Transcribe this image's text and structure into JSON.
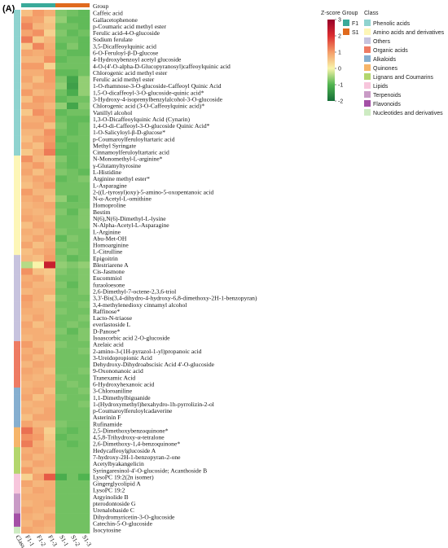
{
  "chart_data": {
    "type": "heatmap",
    "panel_label": "(A)",
    "columns": [
      "F1-1",
      "F1-2",
      "F1-3",
      "S1-1",
      "S1-2",
      "S1-3"
    ],
    "class_column_label": "Class",
    "group_label": "Group",
    "column_groups": [
      "F1",
      "F1",
      "F1",
      "S1",
      "S1",
      "S1"
    ],
    "zscore_legend": {
      "title": "Z-score",
      "ticks": [
        3,
        2,
        1,
        0,
        -1,
        -2
      ],
      "range": [
        -2,
        3
      ]
    },
    "group_legend": {
      "title": "Group",
      "items": [
        {
          "name": "F1",
          "color": "#3aaa9a"
        },
        {
          "name": "S1",
          "color": "#e06a1e"
        }
      ]
    },
    "class_legend": {
      "title": "Class",
      "items": [
        {
          "name": "Phenolic acids",
          "color": "#8fd3cf"
        },
        {
          "name": "Amino acids and derivatives",
          "color": "#fdf6b7"
        },
        {
          "name": "Others",
          "color": "#c7c3de"
        },
        {
          "name": "Organic acids",
          "color": "#ee7b63"
        },
        {
          "name": "Alkaloids",
          "color": "#86afd0"
        },
        {
          "name": "Quinones",
          "color": "#f6b56a"
        },
        {
          "name": "Lignans and Coumarins",
          "color": "#b3d66d"
        },
        {
          "name": "Lipids",
          "color": "#f7c6dc"
        },
        {
          "name": "Terpenoids",
          "color": "#c99bc6"
        },
        {
          "name": "Flavonoids",
          "color": "#a450a6"
        },
        {
          "name": "Nucleotides and derivatives",
          "color": "#cdebc2"
        }
      ]
    },
    "rows": [
      {
        "name": "Caffeic acid",
        "class": "Phenolic acids",
        "values": [
          0.6,
          1.0,
          0.8,
          -0.7,
          -0.8,
          -0.9
        ]
      },
      {
        "name": "Gallacetophenone",
        "class": "Phenolic acids",
        "values": [
          1.0,
          0.9,
          0.5,
          -0.6,
          -0.9,
          -0.9
        ]
      },
      {
        "name": "p-Coumaric acid methyl ester",
        "class": "Phenolic acids",
        "values": [
          1.2,
          0.7,
          0.6,
          -0.8,
          -0.8,
          -0.9
        ]
      },
      {
        "name": "Ferulic acid-4-O-glucoside",
        "class": "Phenolic acids",
        "values": [
          0.9,
          1.1,
          0.4,
          -0.7,
          -0.9,
          -0.8
        ]
      },
      {
        "name": "Sodium ferulate",
        "class": "Phenolic acids",
        "values": [
          1.3,
          0.5,
          0.7,
          -0.8,
          -0.8,
          -0.9
        ]
      },
      {
        "name": "3,5-Dicaffeoylquinic acid",
        "class": "Phenolic acids",
        "values": [
          0.5,
          1.2,
          0.8,
          -0.9,
          -0.7,
          -0.9
        ]
      },
      {
        "name": "6-O-Feruloyl-β-D-glucose",
        "class": "Phenolic acids",
        "values": [
          0.9,
          0.8,
          0.9,
          -0.8,
          -0.9,
          -0.9
        ]
      },
      {
        "name": "4-Hydroxybenzoyl acetyl glucoside",
        "class": "Phenolic acids",
        "values": [
          0.7,
          0.7,
          1.1,
          -0.9,
          -0.8,
          -0.8
        ]
      },
      {
        "name": "4-O-(4'-O-alpha-D-Glucopyranosyl)caffeoylquinic acid",
        "class": "Phenolic acids",
        "values": [
          1.0,
          1.0,
          0.4,
          -0.8,
          -0.8,
          -0.8
        ]
      },
      {
        "name": "Chlorogenic acid methyl ester",
        "class": "Phenolic acids",
        "values": [
          0.8,
          0.8,
          1.0,
          -0.9,
          -0.9,
          -0.8
        ]
      },
      {
        "name": "Ferulic acid methyl ester",
        "class": "Phenolic acids",
        "values": [
          0.9,
          0.6,
          1.0,
          -0.7,
          -1.2,
          -0.6
        ]
      },
      {
        "name": "1-O-rhamnose-3-O-glucoside-Caffeoyl Quinic Acid",
        "class": "Phenolic acids",
        "values": [
          0.7,
          0.9,
          0.9,
          -0.6,
          -1.3,
          -0.6
        ]
      },
      {
        "name": "1,5-O-dicaffeoyl-3-O-glucoside-quinic acid*",
        "class": "Phenolic acids",
        "values": [
          1.0,
          0.7,
          0.8,
          -0.8,
          -1.1,
          -0.6
        ]
      },
      {
        "name": "3-Hydroxy-4-isoprenylbenzylalcohol-3-O-glucoside",
        "class": "Phenolic acids",
        "values": [
          0.6,
          1.0,
          0.9,
          -0.9,
          -0.8,
          -0.8
        ]
      },
      {
        "name": "Chlorogenic acid (3-O-Caffeoylquinic acid)*",
        "class": "Phenolic acids",
        "values": [
          0.9,
          0.9,
          0.7,
          -0.6,
          -1.2,
          -0.7
        ]
      },
      {
        "name": "Vanillyl alcohol",
        "class": "Phenolic acids",
        "values": [
          0.5,
          1.1,
          0.9,
          -0.9,
          -0.8,
          -0.8
        ]
      },
      {
        "name": "1,3-O-Dicaffeoylquinic Acid (Cynarin)",
        "class": "Phenolic acids",
        "values": [
          0.8,
          0.8,
          1.0,
          -0.8,
          -0.9,
          -0.9
        ]
      },
      {
        "name": "1,4-O-di-Caffeoyl-3-O-glucoside Quinic Acid*",
        "class": "Phenolic acids",
        "values": [
          0.9,
          0.9,
          0.6,
          -0.7,
          -0.9,
          -0.8
        ]
      },
      {
        "name": "1-O-Salicyloyl-β-D-glucose*",
        "class": "Phenolic acids",
        "values": [
          0.7,
          0.7,
          1.1,
          -0.8,
          -0.9,
          -0.8
        ]
      },
      {
        "name": "p-Coumaroylferuloyltartaric acid",
        "class": "Phenolic acids",
        "values": [
          0.6,
          0.9,
          1.0,
          -0.9,
          -0.8,
          -0.8
        ]
      },
      {
        "name": "Methyl Syringate",
        "class": "Phenolic acids",
        "values": [
          0.8,
          0.6,
          1.1,
          -0.8,
          -0.9,
          -0.8
        ]
      },
      {
        "name": "Cinnamoylferuloyltartaric acid",
        "class": "Phenolic acids",
        "values": [
          0.5,
          0.8,
          1.3,
          -0.9,
          -0.9,
          -0.8
        ]
      },
      {
        "name": "N-Monomethyl-L-arginine*",
        "class": "Amino acids and derivatives",
        "values": [
          1.1,
          0.7,
          0.6,
          -0.7,
          -0.9,
          -0.8
        ]
      },
      {
        "name": "γ-Glutamyltyrosine",
        "class": "Amino acids and derivatives",
        "values": [
          0.8,
          1.0,
          0.7,
          -0.8,
          -0.9,
          -0.8
        ]
      },
      {
        "name": "L-Histidine",
        "class": "Amino acids and derivatives",
        "values": [
          0.9,
          0.6,
          0.9,
          -0.7,
          -0.8,
          -0.9
        ]
      },
      {
        "name": "Arginine methyl ester*",
        "class": "Amino acids and derivatives",
        "values": [
          0.7,
          0.9,
          0.8,
          -0.9,
          -0.8,
          -0.7
        ]
      },
      {
        "name": "L-Asparagine",
        "class": "Amino acids and derivatives",
        "values": [
          0.6,
          0.8,
          1.0,
          -0.8,
          -0.8,
          -0.8
        ]
      },
      {
        "name": "2-((L-tyrosyl)oxy)-5-amino-5-oxopentanoic acid",
        "class": "Amino acids and derivatives",
        "values": [
          1.0,
          0.7,
          0.7,
          -0.8,
          -0.8,
          -0.8
        ]
      },
      {
        "name": "N-α-Acetyl-L-ornithine",
        "class": "Amino acids and derivatives",
        "values": [
          0.8,
          0.9,
          0.6,
          -0.6,
          -0.9,
          -0.8
        ]
      },
      {
        "name": "Homoproline",
        "class": "Amino acids and derivatives",
        "values": [
          0.7,
          0.8,
          0.9,
          -0.8,
          -0.8,
          -0.8
        ]
      },
      {
        "name": "Bestim",
        "class": "Amino acids and derivatives",
        "values": [
          0.8,
          0.7,
          0.8,
          -0.7,
          -0.9,
          -0.7
        ]
      },
      {
        "name": "N(6),N(6)-Dimethyl-L-lysine",
        "class": "Amino acids and derivatives",
        "values": [
          0.9,
          0.8,
          0.6,
          -0.8,
          -0.8,
          -0.7
        ]
      },
      {
        "name": "N-Alpha-Acetyl-L-Asparagine",
        "class": "Amino acids and derivatives",
        "values": [
          0.6,
          0.9,
          0.8,
          -0.8,
          -0.8,
          -0.7
        ]
      },
      {
        "name": "L-Arginine",
        "class": "Amino acids and derivatives",
        "values": [
          0.8,
          0.7,
          0.9,
          -0.7,
          -0.8,
          -0.8
        ]
      },
      {
        "name": "Abu-Met-OH",
        "class": "Amino acids and derivatives",
        "values": [
          0.7,
          0.9,
          0.7,
          -0.9,
          -0.7,
          -0.8
        ]
      },
      {
        "name": "Homoarginine",
        "class": "Amino acids and derivatives",
        "values": [
          0.9,
          0.6,
          0.8,
          -0.7,
          -0.8,
          -0.8
        ]
      },
      {
        "name": "L-Citrulline",
        "class": "Amino acids and derivatives",
        "values": [
          0.6,
          0.8,
          0.9,
          -0.8,
          -0.7,
          -0.8
        ]
      },
      {
        "name": "Epigoitrin",
        "class": "Others",
        "values": [
          0.7,
          0.6,
          1.0,
          -0.7,
          -0.9,
          -0.8
        ]
      },
      {
        "name": "Blestriarene A",
        "class": "Others",
        "values": [
          -0.4,
          0.0,
          2.3,
          -0.6,
          -0.7,
          -0.6
        ]
      },
      {
        "name": "Cis-Jasmone",
        "class": "Others",
        "values": [
          1.1,
          0.6,
          0.5,
          -0.7,
          -0.8,
          -0.7
        ]
      },
      {
        "name": "Eucommiol",
        "class": "Others",
        "values": [
          0.8,
          0.9,
          0.6,
          -0.8,
          -0.8,
          -0.7
        ]
      },
      {
        "name": "furaoloesone",
        "class": "Others",
        "values": [
          0.9,
          0.7,
          0.7,
          -0.7,
          -0.9,
          -0.7
        ]
      },
      {
        "name": "2,6-Dimethyl-7-octene-2,3,6-triol",
        "class": "Others",
        "values": [
          0.7,
          0.8,
          0.8,
          -0.8,
          -0.8,
          -0.7
        ]
      },
      {
        "name": "3,3'-Bis(3,4-dihydro-4-hydroxy-6,8-dimethoxy-2H-1-benzopyran)",
        "class": "Others",
        "values": [
          1.0,
          0.8,
          0.5,
          -0.7,
          -0.8,
          -0.8
        ]
      },
      {
        "name": "3,4-methylenedioxy cinnamyl alcohol",
        "class": "Others",
        "values": [
          0.9,
          0.7,
          0.7,
          -0.8,
          -0.8,
          -0.7
        ]
      },
      {
        "name": "Raffinose*",
        "class": "Others",
        "values": [
          0.8,
          0.8,
          0.7,
          -0.7,
          -0.8,
          -0.8
        ]
      },
      {
        "name": "Lacto-N-triaose",
        "class": "Others",
        "values": [
          0.7,
          0.9,
          0.7,
          -0.8,
          -0.8,
          -0.7
        ]
      },
      {
        "name": "everlastoside L",
        "class": "Others",
        "values": [
          0.9,
          0.6,
          0.8,
          -0.8,
          -0.7,
          -0.8
        ]
      },
      {
        "name": "D-Panose*",
        "class": "Others",
        "values": [
          0.8,
          0.8,
          0.7,
          -0.7,
          -0.9,
          -0.7
        ]
      },
      {
        "name": "Isoascorbic acid 2-O-glucoside",
        "class": "Others",
        "values": [
          0.7,
          0.8,
          0.8,
          -0.8,
          -0.8,
          -0.7
        ]
      },
      {
        "name": "Azelaic acid",
        "class": "Organic acids",
        "values": [
          1.0,
          0.7,
          0.6,
          -0.7,
          -0.8,
          -0.8
        ]
      },
      {
        "name": "2-amino-3-(1H-pyrazol-1-yl)propanoic acid",
        "class": "Organic acids",
        "values": [
          0.8,
          0.9,
          0.6,
          -0.8,
          -0.8,
          -0.7
        ]
      },
      {
        "name": "3-Ureidopropionic Acid",
        "class": "Organic acids",
        "values": [
          0.9,
          0.7,
          0.8,
          -0.8,
          -0.8,
          -0.8
        ]
      },
      {
        "name": "Dehydroxy-Dihydroabscisic Acid 4'-O-glucoside",
        "class": "Organic acids",
        "values": [
          0.7,
          0.9,
          0.8,
          -0.8,
          -0.8,
          -0.8
        ]
      },
      {
        "name": "9-Oxononanoic acid",
        "class": "Organic acids",
        "values": [
          0.9,
          0.8,
          0.6,
          -0.8,
          -0.8,
          -0.7
        ]
      },
      {
        "name": "Tranexamic Acid",
        "class": "Organic acids",
        "values": [
          0.8,
          0.7,
          0.8,
          -0.7,
          -0.8,
          -0.8
        ]
      },
      {
        "name": "6-Hydroxyhexanoic acid",
        "class": "Organic acids",
        "values": [
          0.7,
          0.8,
          0.8,
          -0.8,
          -0.7,
          -0.8
        ]
      },
      {
        "name": "3-Chloroaniline",
        "class": "Alkaloids",
        "values": [
          0.8,
          0.9,
          0.6,
          -0.8,
          -0.8,
          -0.7
        ]
      },
      {
        "name": "1,1-Dimethylbiguanide",
        "class": "Alkaloids",
        "values": [
          0.9,
          0.6,
          0.8,
          -0.7,
          -0.8,
          -0.8
        ]
      },
      {
        "name": "1-(Hydroxymethyl)hexahydro-1h-pyrrolizin-2-ol",
        "class": "Alkaloids",
        "values": [
          0.7,
          0.8,
          0.8,
          -0.8,
          -0.8,
          -0.7
        ]
      },
      {
        "name": "p-Coumaroylferuloylcadaverine",
        "class": "Alkaloids",
        "values": [
          0.8,
          0.7,
          0.9,
          -0.8,
          -0.8,
          -0.8
        ]
      },
      {
        "name": "Asterinin F",
        "class": "Alkaloids",
        "values": [
          0.6,
          0.9,
          0.9,
          -0.8,
          -0.8,
          -0.8
        ]
      },
      {
        "name": "Rufinamide",
        "class": "Alkaloids",
        "values": [
          0.9,
          0.7,
          0.7,
          -0.7,
          -0.8,
          -0.8
        ]
      },
      {
        "name": "2,5-Dimethoxybenzoquinone*",
        "class": "Quinones",
        "values": [
          1.4,
          0.9,
          0.4,
          -0.8,
          -0.9,
          -0.8
        ]
      },
      {
        "name": "4,5,8-Trihydroxy-α-tetralone",
        "class": "Quinones",
        "values": [
          1.1,
          1.0,
          0.5,
          -0.9,
          -0.8,
          -0.8
        ]
      },
      {
        "name": "2,6-Dimethoxy-1,4-benzoquinone*",
        "class": "Quinones",
        "values": [
          1.3,
          0.8,
          0.6,
          -0.8,
          -0.9,
          -0.8
        ]
      },
      {
        "name": "Hedycaffeoylglucoside A",
        "class": "Lignans and Coumarins",
        "values": [
          0.8,
          0.9,
          0.7,
          -0.8,
          -0.8,
          -0.8
        ]
      },
      {
        "name": "7-hydroxy-2H-1-benzopyran-2-one",
        "class": "Lignans and Coumarins",
        "values": [
          0.9,
          0.7,
          0.8,
          -0.8,
          -0.8,
          -0.8
        ]
      },
      {
        "name": "Acetylbyakangelicin",
        "class": "Lignans and Coumarins",
        "values": [
          0.7,
          0.9,
          0.8,
          -0.8,
          -0.8,
          -0.8
        ]
      },
      {
        "name": "Syringaresinol-4'-O-glucoside; Acanthoside B",
        "class": "Lignans and Coumarins",
        "values": [
          1.0,
          0.7,
          0.7,
          -0.8,
          -0.8,
          -0.8
        ]
      },
      {
        "name": "LysoPC 19:2(2n isomer)",
        "class": "Lipids",
        "values": [
          0.4,
          0.9,
          1.6,
          -1.1,
          -0.8,
          -1.0
        ]
      },
      {
        "name": "Gingerglycolipid A",
        "class": "Lipids",
        "values": [
          0.9,
          0.7,
          0.8,
          -0.8,
          -0.8,
          -0.8
        ]
      },
      {
        "name": "LysoPC 19:2",
        "class": "Lipids",
        "values": [
          0.7,
          0.9,
          0.8,
          -0.8,
          -0.8,
          -0.8
        ]
      },
      {
        "name": "Argyinolide B",
        "class": "Terpenoids",
        "values": [
          0.8,
          0.8,
          0.8,
          -0.8,
          -0.8,
          -0.8
        ]
      },
      {
        "name": "pterodontoside G",
        "class": "Terpenoids",
        "values": [
          0.7,
          0.8,
          0.9,
          -0.8,
          -0.8,
          -0.8
        ]
      },
      {
        "name": "Urenalobaside C",
        "class": "Terpenoids",
        "values": [
          0.9,
          0.8,
          0.7,
          -0.8,
          -0.8,
          -0.8
        ]
      },
      {
        "name": "Dihydromyricetin-3-O-glucoside",
        "class": "Flavonoids",
        "values": [
          0.8,
          0.7,
          0.9,
          -0.8,
          -0.8,
          -0.8
        ]
      },
      {
        "name": "Catechin-5-O-glucoside",
        "class": "Flavonoids",
        "values": [
          0.7,
          0.9,
          0.8,
          -0.8,
          -0.8,
          -0.8
        ]
      },
      {
        "name": "Isocytosine",
        "class": "Nucleotides and derivatives",
        "values": [
          0.9,
          0.8,
          0.7,
          -0.8,
          -0.8,
          -0.8
        ]
      }
    ]
  }
}
